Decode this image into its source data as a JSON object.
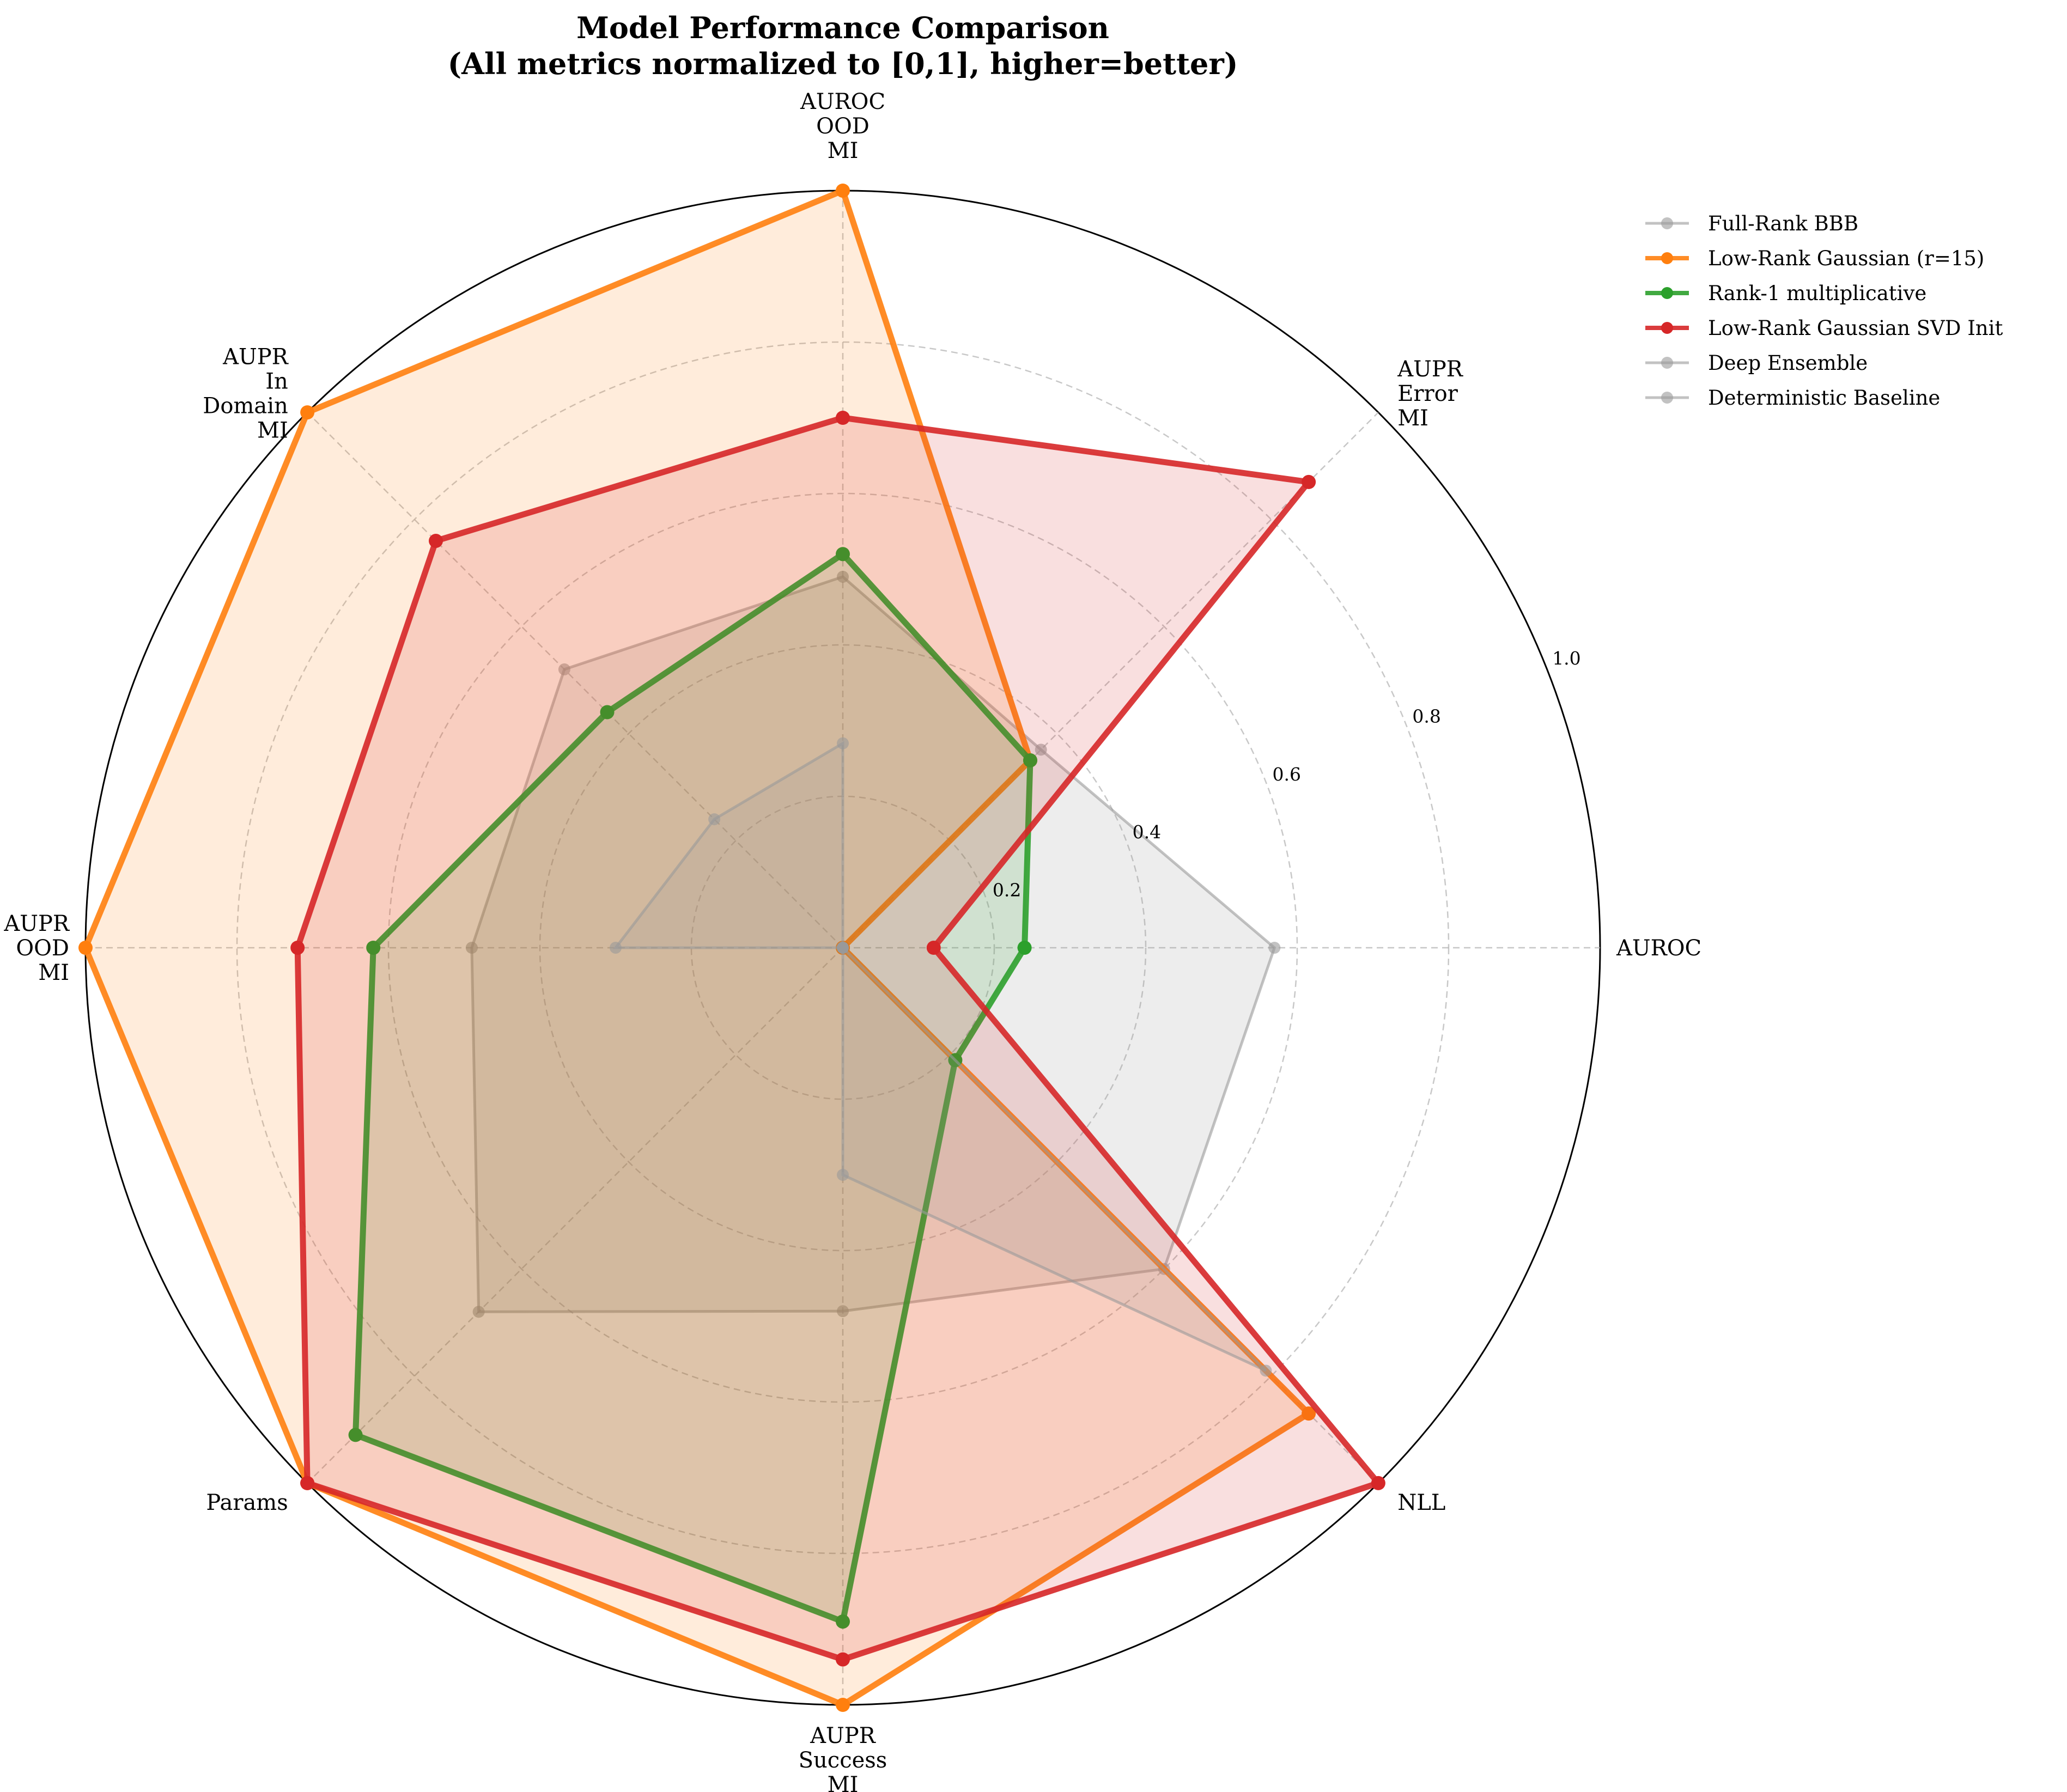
{
  "chart_data": {
    "type": "radar",
    "title": "Model Performance Comparison",
    "subtitle": "(All metrics normalized to [0,1], higher=better)",
    "axes": [
      "AUROC",
      "AUPR\nError\nMI",
      "AUROC\nOOD\nMI",
      "AUPR\nIn\nDomain\nMI",
      "AUPR\nOOD\nMI",
      "Params",
      "AUPR\nSuccess\nMI",
      "NLL"
    ],
    "radial_ticks": [
      "0.2",
      "0.4",
      "0.6",
      "0.8",
      "1.0"
    ],
    "rlim": [
      0,
      1
    ],
    "grid": true,
    "legend_position": "upper-right, outside plot",
    "series": [
      {
        "name": "Full-Rank BBB",
        "color": "#999999",
        "emphasis": false,
        "values": [
          0.57,
          0.37,
          0.49,
          0.52,
          0.49,
          0.68,
          0.48,
          0.6
        ]
      },
      {
        "name": "Low-Rank Gaussian (r=15)",
        "color": "#ff7f0e",
        "emphasis": true,
        "values": [
          0.0,
          0.35,
          1.0,
          1.0,
          1.0,
          1.0,
          1.0,
          0.87
        ]
      },
      {
        "name": "Rank-1 multiplicative",
        "color": "#2ca02c",
        "emphasis": true,
        "values": [
          0.24,
          0.35,
          0.52,
          0.44,
          0.62,
          0.91,
          0.89,
          0.21
        ]
      },
      {
        "name": "Low-Rank Gaussian SVD Init",
        "color": "#d62728",
        "emphasis": true,
        "values": [
          0.12,
          0.87,
          0.7,
          0.76,
          0.72,
          1.0,
          0.94,
          1.0
        ]
      },
      {
        "name": "Deep Ensemble",
        "color": "#999999",
        "emphasis": false,
        "values": [
          0.0,
          0.0,
          0.27,
          0.24,
          0.3,
          0.0,
          0.3,
          0.79
        ]
      },
      {
        "name": "Deterministic Baseline",
        "color": "#999999",
        "emphasis": false,
        "values": [
          0.0,
          0.0,
          0.0,
          0.0,
          0.0,
          0.0,
          0.0,
          0.0
        ]
      }
    ]
  }
}
